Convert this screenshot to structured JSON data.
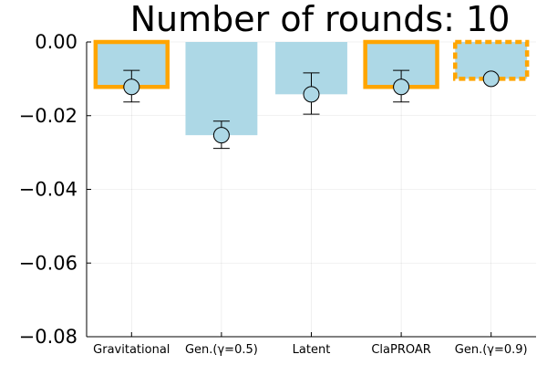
{
  "chart_data": {
    "type": "bar",
    "title": "Number of rounds: 10",
    "xlabel": "",
    "ylabel": "",
    "categories": [
      "Gravitational",
      "Gen.(γ=0.5)",
      "Latent",
      "ClaPROAR",
      "Gen.(γ=0.9)"
    ],
    "values": [
      -0.0122,
      -0.0253,
      -0.0142,
      -0.0122,
      -0.01
    ],
    "error_low": [
      -0.0163,
      -0.0289,
      -0.0196,
      -0.0163,
      -0.01
    ],
    "error_high": [
      -0.0077,
      -0.0215,
      -0.0084,
      -0.0077,
      -0.01
    ],
    "highlight": [
      "solid",
      "none",
      "none",
      "solid",
      "dashed"
    ],
    "ylim": [
      -0.08,
      0.0
    ],
    "yticks": [
      0.0,
      -0.02,
      -0.04,
      -0.06,
      -0.08
    ],
    "ytick_labels": [
      "0.00",
      "−0.02",
      "−0.04",
      "−0.06",
      "−0.08"
    ],
    "grid": true,
    "legend": "none",
    "colors": {
      "bar_fill": "#add8e6",
      "highlight": "#ffa500",
      "marker_fill": "#add8e6",
      "marker_stroke": "#000000"
    }
  }
}
